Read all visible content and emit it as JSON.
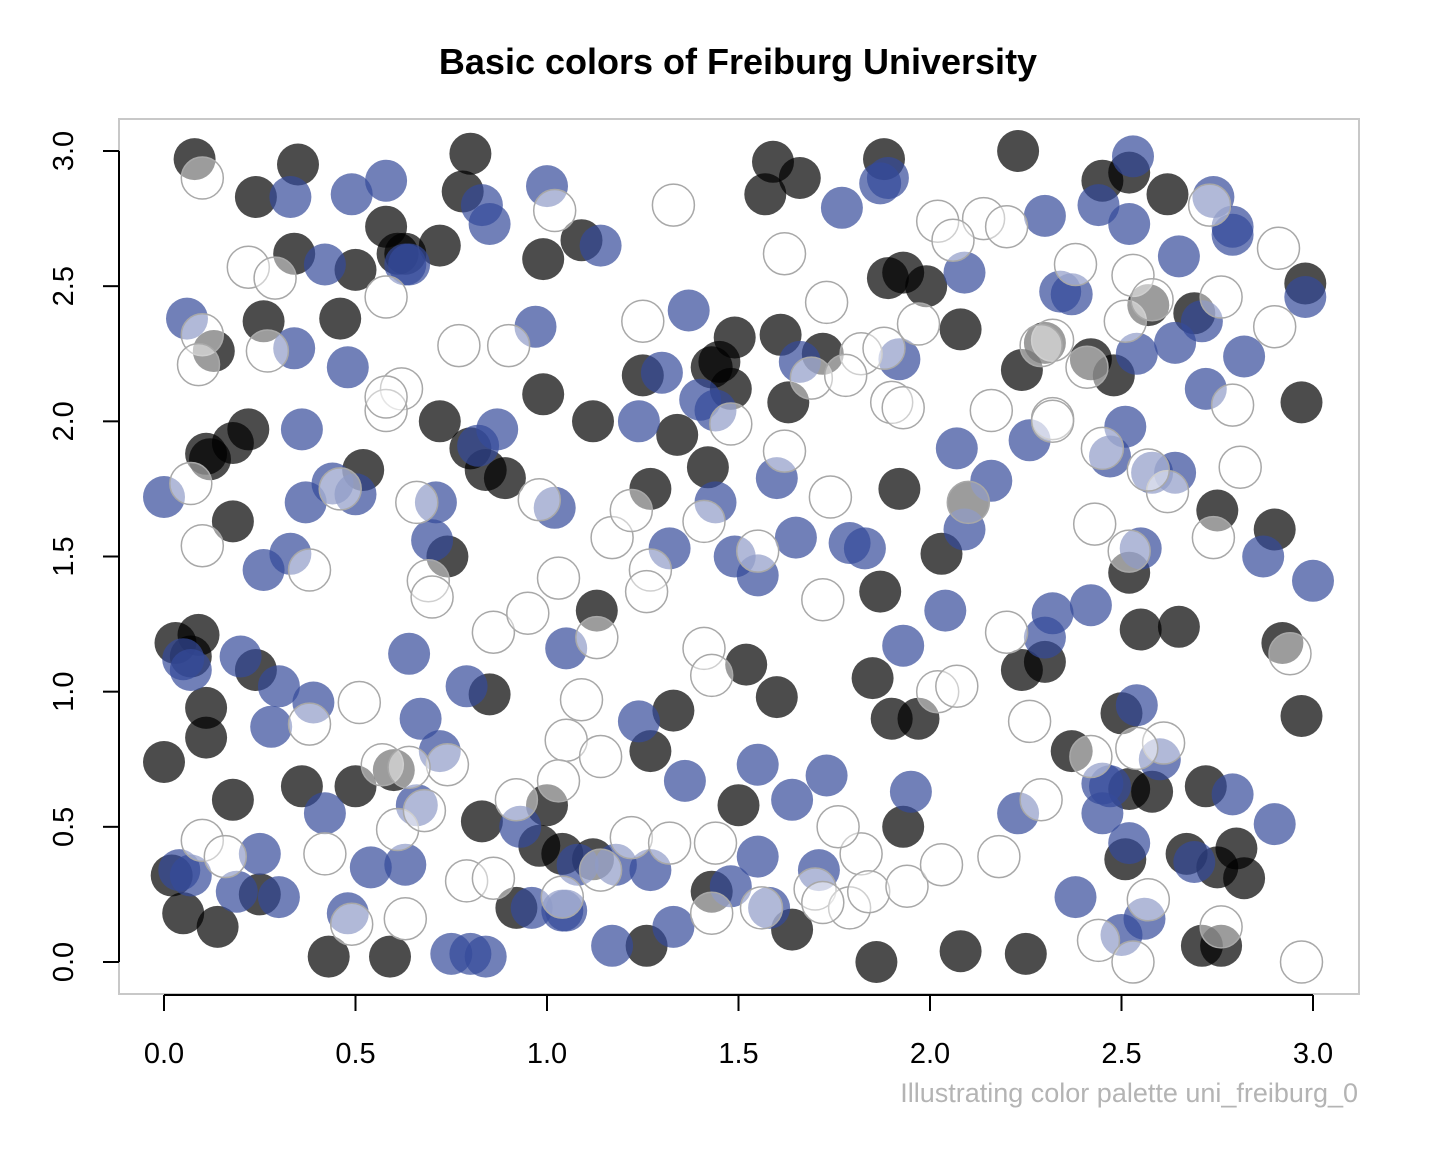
{
  "chart_data": {
    "type": "scatter",
    "title": "Basic colors of Freiburg University",
    "caption": "Illustrating color palette uni_freiburg_0",
    "xlabel": "",
    "ylabel": "",
    "xlim": [
      0,
      3
    ],
    "ylim": [
      0,
      3
    ],
    "x_ticks": [
      "0.0",
      "0.5",
      "1.0",
      "1.5",
      "2.0",
      "2.5",
      "3.0"
    ],
    "y_ticks": [
      "0.0",
      "0.5",
      "1.0",
      "1.5",
      "2.0",
      "2.5",
      "3.0"
    ],
    "grid": false,
    "legend": "none",
    "palette": {
      "black": "#000000",
      "blue": "#344A9A",
      "white": "#FFFFFF"
    },
    "series": [
      {
        "color": "#000000",
        "x": [
          0.08,
          0.35,
          0.8,
          0.24,
          0.78,
          0.61,
          0.99,
          1.09,
          1.59,
          1.57,
          1.66,
          1.88,
          2.23,
          2.45,
          2.52,
          2.62,
          2.98,
          2.69,
          0.26,
          0.34,
          0.5,
          0.46,
          0.58,
          0.72,
          0.13,
          0.63,
          1.99,
          2.08,
          1.89,
          1.93,
          1.34,
          1.43,
          1.49,
          1.63,
          1.72,
          1.61,
          1.25,
          1.12,
          0.99,
          0.18,
          0.11,
          0.22,
          0.52,
          0.72,
          0.84,
          0.8,
          0.89,
          0.18,
          0.12,
          0.74,
          1.13,
          1.48,
          1.27,
          1.87,
          1.92,
          2.03,
          2.1,
          2.3,
          2.24,
          2.42,
          2.48,
          2.57,
          2.75,
          2.9,
          2.97,
          2.52,
          2.55,
          2.65,
          2.92,
          2.97,
          0.03,
          0.09,
          0.07,
          0.11,
          0.24,
          0.11,
          0.0,
          0.18,
          0.36,
          0.5,
          0.6,
          0.83,
          0.85,
          0.98,
          1.0,
          1.12,
          1.27,
          1.33,
          1.5,
          1.52,
          1.6,
          1.85,
          1.93,
          1.97,
          1.9,
          2.24,
          2.3,
          2.37,
          2.51,
          2.58,
          2.72,
          2.8,
          2.82,
          2.75,
          2.67,
          2.52,
          0.02,
          0.14,
          0.05,
          0.25,
          0.43,
          0.59,
          0.92,
          1.04,
          1.26,
          1.43,
          1.64,
          1.86,
          2.08,
          2.25,
          2.5,
          2.71,
          2.76,
          1.45,
          1.42
        ],
        "y": [
          2.97,
          2.95,
          2.99,
          2.83,
          2.85,
          2.62,
          2.6,
          2.67,
          2.96,
          2.84,
          2.9,
          2.97,
          3.0,
          2.89,
          2.92,
          2.84,
          2.51,
          2.4,
          2.37,
          2.62,
          2.56,
          2.38,
          2.72,
          2.65,
          2.26,
          2.62,
          2.5,
          2.34,
          2.53,
          2.55,
          1.95,
          2.2,
          2.31,
          2.07,
          2.25,
          2.32,
          2.17,
          2.0,
          2.1,
          1.92,
          1.88,
          1.97,
          1.82,
          2.0,
          1.82,
          1.9,
          1.79,
          1.63,
          1.86,
          1.5,
          1.3,
          2.12,
          1.75,
          1.37,
          1.75,
          1.51,
          1.7,
          2.29,
          2.19,
          2.23,
          2.17,
          2.43,
          1.67,
          1.6,
          2.07,
          1.44,
          1.23,
          1.24,
          1.18,
          0.91,
          1.18,
          1.21,
          1.13,
          0.94,
          1.08,
          0.83,
          0.74,
          0.6,
          0.65,
          0.65,
          0.71,
          0.52,
          0.99,
          0.43,
          0.58,
          0.38,
          0.78,
          0.93,
          0.58,
          1.1,
          0.98,
          1.05,
          0.5,
          0.9,
          0.9,
          1.08,
          1.11,
          0.78,
          0.38,
          0.63,
          0.65,
          0.42,
          0.31,
          0.35,
          0.4,
          0.64,
          0.32,
          0.13,
          0.18,
          0.25,
          0.02,
          0.02,
          0.2,
          0.4,
          0.06,
          0.26,
          0.12,
          0.0,
          0.04,
          0.03,
          0.92,
          0.06,
          0.06,
          2.22,
          1.83
        ]
      },
      {
        "color": "#344A9A",
        "x": [
          0.33,
          0.49,
          0.58,
          0.83,
          0.85,
          1.0,
          1.14,
          1.77,
          1.87,
          1.89,
          2.09,
          2.3,
          2.44,
          2.53,
          2.65,
          2.74,
          2.79,
          2.98,
          2.52,
          0.06,
          0.34,
          0.42,
          0.48,
          0.63,
          0.64,
          0.97,
          1.3,
          1.37,
          1.44,
          1.66,
          1.92,
          2.34,
          2.37,
          2.54,
          2.64,
          2.71,
          2.79,
          2.82,
          0.0,
          0.36,
          0.37,
          0.44,
          0.5,
          0.7,
          0.71,
          0.82,
          0.87,
          1.02,
          1.24,
          1.32,
          1.4,
          1.44,
          1.55,
          1.6,
          1.65,
          1.79,
          2.07,
          2.09,
          2.16,
          2.26,
          2.47,
          2.51,
          2.55,
          2.64,
          2.72,
          2.87,
          3.0,
          2.58,
          0.26,
          0.33,
          0.07,
          0.05,
          0.2,
          0.28,
          0.3,
          0.39,
          0.64,
          0.67,
          0.72,
          0.79,
          1.05,
          1.24,
          1.49,
          1.55,
          1.83,
          1.93,
          2.04,
          2.32,
          2.42,
          2.3,
          2.45,
          0.04,
          0.07,
          0.19,
          0.25,
          0.3,
          0.42,
          0.54,
          0.63,
          0.66,
          0.8,
          0.93,
          0.96,
          1.04,
          1.08,
          1.17,
          1.27,
          1.36,
          1.48,
          1.55,
          1.64,
          1.73,
          1.95,
          2.23,
          2.38,
          2.45,
          2.5,
          2.56,
          2.6,
          2.69,
          2.79,
          2.9,
          2.47,
          2.52,
          0.48,
          0.75,
          0.84,
          1.05,
          1.18,
          1.33,
          1.58,
          1.71,
          2.54
        ],
        "y": [
          2.83,
          2.84,
          2.89,
          2.8,
          2.73,
          2.87,
          2.65,
          2.79,
          2.88,
          2.9,
          2.55,
          2.76,
          2.8,
          2.98,
          2.61,
          2.83,
          2.69,
          2.46,
          2.73,
          2.38,
          2.27,
          2.58,
          2.2,
          2.58,
          2.58,
          2.35,
          2.18,
          2.41,
          2.04,
          2.22,
          2.23,
          2.48,
          2.47,
          2.25,
          2.29,
          2.37,
          2.72,
          2.24,
          1.72,
          1.97,
          1.7,
          1.77,
          1.73,
          1.56,
          1.7,
          1.91,
          1.97,
          1.68,
          2.0,
          1.53,
          2.08,
          1.7,
          1.43,
          1.79,
          1.57,
          1.55,
          1.9,
          1.6,
          1.78,
          1.93,
          1.87,
          1.98,
          1.53,
          1.81,
          2.12,
          1.5,
          1.41,
          1.81,
          1.45,
          1.51,
          1.08,
          1.12,
          1.13,
          0.87,
          1.02,
          0.96,
          1.14,
          0.9,
          0.78,
          1.02,
          1.16,
          0.89,
          1.5,
          0.73,
          1.53,
          1.17,
          1.3,
          1.29,
          1.32,
          1.2,
          0.66,
          0.34,
          0.32,
          0.26,
          0.4,
          0.24,
          0.55,
          0.35,
          0.36,
          0.58,
          0.03,
          0.5,
          0.2,
          0.19,
          0.36,
          0.06,
          0.34,
          0.67,
          0.28,
          0.39,
          0.6,
          0.69,
          0.63,
          0.55,
          0.24,
          0.55,
          0.1,
          0.16,
          0.75,
          0.37,
          0.62,
          0.51,
          0.65,
          0.44,
          0.18,
          0.03,
          0.02,
          0.19,
          0.36,
          0.13,
          0.2,
          0.34,
          0.95
        ]
      },
      {
        "color": "#FFFFFF",
        "x": [
          0.1,
          0.22,
          0.1,
          0.29,
          0.58,
          0.62,
          0.77,
          0.9,
          1.02,
          1.33,
          1.62,
          1.73,
          1.82,
          1.9,
          2.02,
          2.14,
          2.2,
          2.32,
          2.38,
          2.53,
          2.73,
          2.91,
          1.93,
          2.32,
          0.09,
          0.27,
          0.38,
          0.58,
          0.58,
          1.25,
          1.48,
          1.69,
          1.78,
          1.88,
          1.97,
          2.06,
          2.16,
          2.41,
          2.51,
          2.58,
          2.76,
          2.79,
          2.9,
          2.29,
          0.1,
          0.07,
          0.46,
          0.66,
          0.69,
          0.98,
          1.03,
          1.17,
          1.22,
          1.27,
          1.41,
          1.55,
          1.62,
          1.74,
          2.1,
          2.32,
          2.43,
          2.52,
          2.62,
          2.74,
          2.81,
          2.45,
          0.38,
          0.51,
          0.74,
          0.7,
          0.86,
          0.95,
          1.05,
          1.13,
          1.26,
          1.41,
          1.43,
          1.72,
          1.82,
          2.02,
          2.07,
          2.2,
          2.26,
          2.42,
          2.61,
          2.94,
          2.57,
          0.1,
          0.16,
          0.42,
          0.57,
          0.61,
          0.64,
          0.68,
          0.79,
          0.86,
          0.92,
          1.03,
          1.09,
          1.14,
          1.22,
          1.32,
          1.44,
          1.56,
          1.7,
          1.79,
          1.84,
          1.94,
          2.03,
          2.18,
          2.29,
          2.44,
          2.54,
          2.57,
          2.76,
          2.97,
          2.53,
          0.49,
          0.63,
          1.04,
          1.14,
          1.43,
          1.72,
          1.76
        ],
        "y": [
          2.9,
          2.57,
          2.32,
          2.53,
          2.46,
          2.12,
          2.28,
          2.28,
          2.78,
          2.8,
          2.62,
          2.44,
          2.25,
          2.07,
          2.74,
          2.75,
          2.72,
          2.3,
          2.58,
          2.54,
          2.8,
          2.64,
          2.05,
          2.01,
          2.21,
          2.26,
          1.45,
          2.04,
          2.09,
          2.37,
          1.99,
          2.16,
          2.17,
          2.27,
          2.36,
          2.67,
          2.04,
          2.2,
          2.37,
          2.45,
          2.46,
          2.06,
          2.35,
          2.28,
          1.54,
          1.77,
          1.75,
          1.7,
          1.41,
          1.71,
          1.42,
          1.57,
          1.67,
          1.45,
          1.63,
          1.52,
          1.89,
          1.72,
          1.7,
          2.0,
          1.62,
          1.52,
          1.74,
          1.57,
          1.83,
          1.9,
          0.88,
          0.96,
          0.73,
          1.35,
          1.22,
          1.29,
          0.82,
          1.2,
          1.37,
          1.16,
          1.06,
          1.34,
          0.4,
          1.0,
          1.02,
          1.22,
          0.89,
          0.76,
          0.81,
          1.14,
          1.82,
          0.45,
          0.39,
          0.4,
          0.73,
          0.49,
          0.72,
          0.56,
          0.3,
          0.31,
          0.6,
          0.67,
          0.97,
          0.76,
          0.46,
          0.44,
          0.44,
          0.2,
          0.27,
          0.2,
          0.26,
          0.28,
          0.36,
          0.39,
          0.6,
          0.08,
          0.79,
          0.23,
          0.13,
          0.0,
          0.0,
          0.14,
          0.16,
          0.24,
          0.34,
          0.18,
          0.22,
          0.5
        ]
      }
    ]
  }
}
